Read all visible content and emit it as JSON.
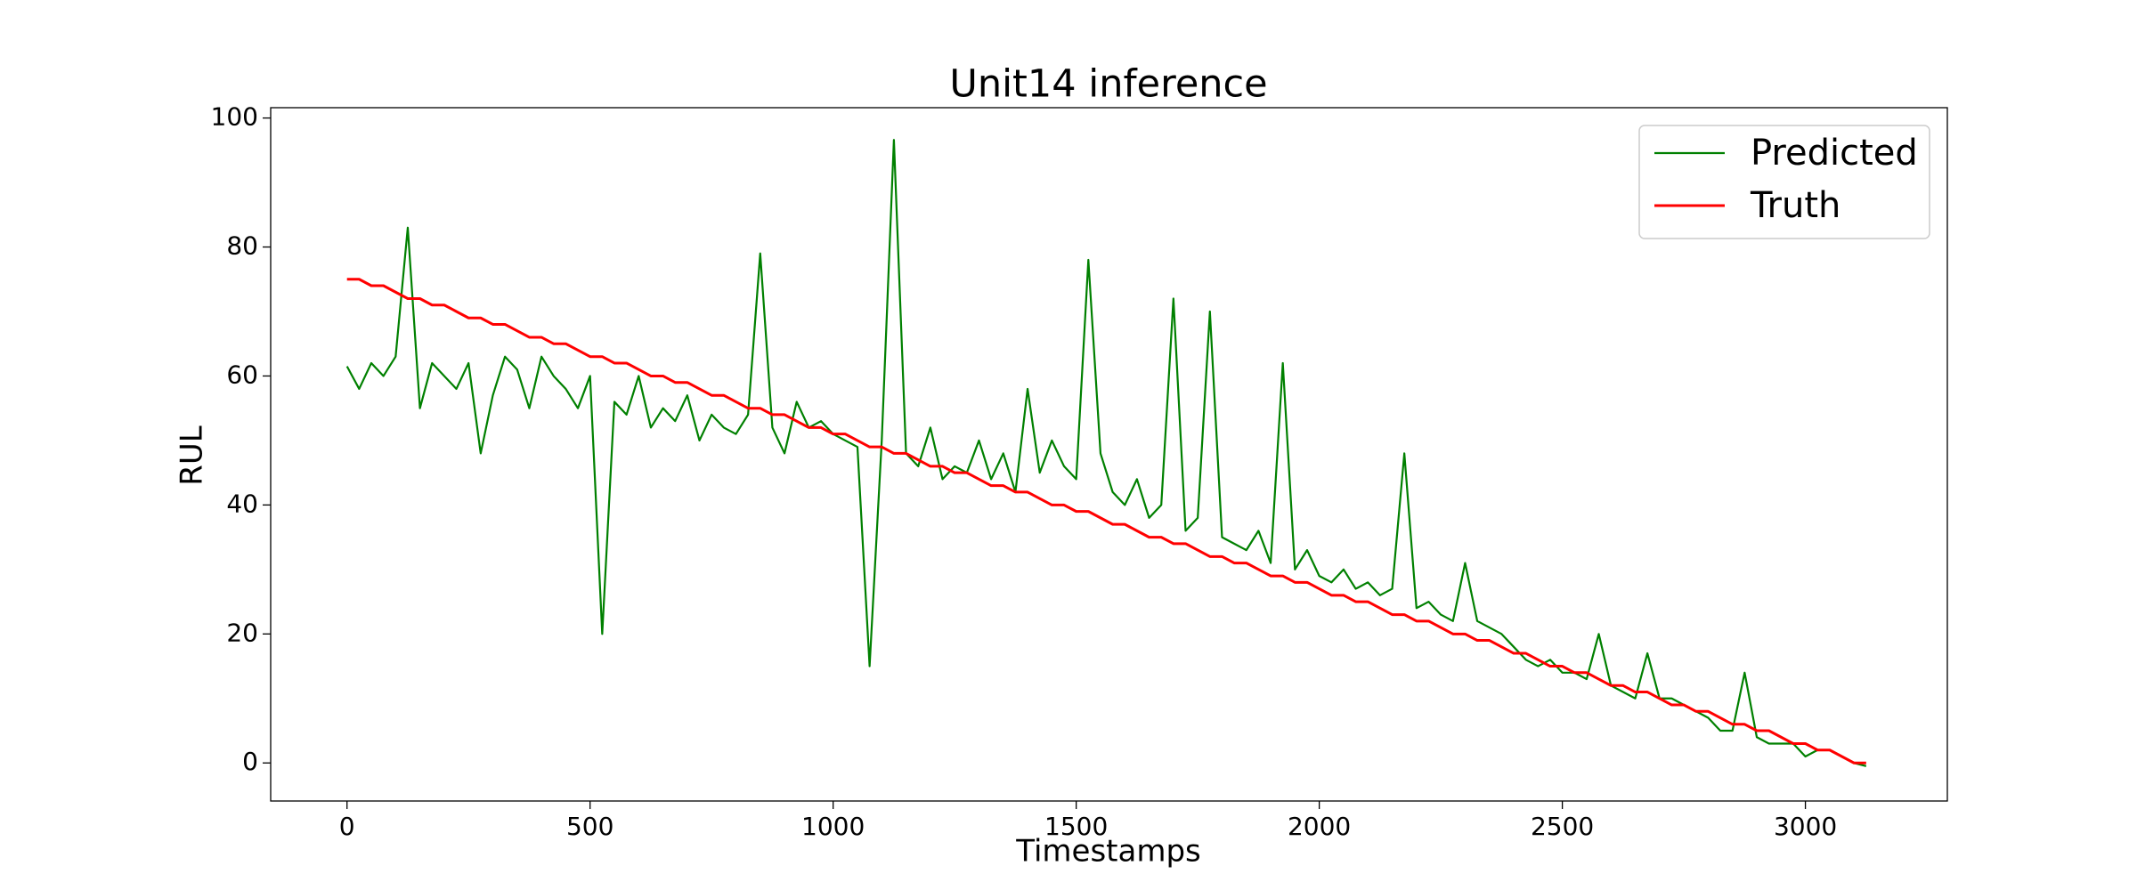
{
  "chart_data": {
    "type": "line",
    "title": "Unit14 inference",
    "x_label": "Timestamps",
    "y_label": "RUL",
    "x": [
      0,
      25,
      50,
      75,
      100,
      125,
      150,
      175,
      200,
      225,
      250,
      275,
      300,
      325,
      350,
      375,
      400,
      425,
      450,
      475,
      500,
      525,
      550,
      575,
      600,
      625,
      650,
      675,
      700,
      725,
      750,
      775,
      800,
      825,
      850,
      875,
      900,
      925,
      950,
      975,
      1000,
      1025,
      1050,
      1075,
      1100,
      1125,
      1150,
      1175,
      1200,
      1225,
      1250,
      1275,
      1300,
      1325,
      1350,
      1375,
      1400,
      1425,
      1450,
      1475,
      1500,
      1525,
      1550,
      1575,
      1600,
      1625,
      1650,
      1675,
      1700,
      1725,
      1750,
      1775,
      1800,
      1825,
      1850,
      1875,
      1900,
      1925,
      1950,
      1975,
      2000,
      2025,
      2050,
      2075,
      2100,
      2125,
      2150,
      2175,
      2200,
      2225,
      2250,
      2275,
      2300,
      2325,
      2350,
      2375,
      2400,
      2425,
      2450,
      2475,
      2500,
      2525,
      2550,
      2575,
      2600,
      2625,
      2650,
      2675,
      2700,
      2725,
      2750,
      2775,
      2800,
      2825,
      2850,
      2875,
      2900,
      2925,
      2950,
      2975,
      3000,
      3025,
      3050,
      3075,
      3100,
      3125
    ],
    "series": [
      {
        "name": "Predicted",
        "color": "#008000",
        "values": [
          61.5,
          58,
          62,
          60,
          63,
          83,
          55,
          62,
          60,
          58,
          62,
          48,
          57,
          63,
          61,
          55,
          63,
          60,
          58,
          55,
          60,
          20,
          56,
          54,
          60,
          52,
          55,
          53,
          57,
          50,
          54,
          52,
          51,
          54,
          79,
          52,
          48,
          56,
          52,
          53,
          51,
          50,
          49,
          15,
          50,
          96.6,
          48,
          46,
          52,
          44,
          46,
          45,
          50,
          44,
          48,
          42,
          58,
          45,
          50,
          46,
          44,
          78,
          48,
          42,
          40,
          44,
          38,
          40,
          72,
          36,
          38,
          70,
          35,
          34,
          33,
          36,
          31,
          62,
          30,
          33,
          29,
          28,
          30,
          27,
          28,
          26,
          27,
          48,
          24,
          25,
          23,
          22,
          31,
          22,
          21,
          20,
          18,
          16,
          15,
          16,
          14,
          14,
          13,
          20,
          12,
          11,
          10,
          17,
          10,
          10,
          9,
          8,
          7,
          5,
          5,
          14,
          4,
          3,
          3,
          3,
          1,
          2,
          2,
          1,
          0,
          -0.5
        ]
      },
      {
        "name": "Truth",
        "color": "#ff0000",
        "values": [
          75,
          75,
          74,
          74,
          73,
          72,
          72,
          71,
          71,
          70,
          69,
          69,
          68,
          68,
          67,
          66,
          66,
          65,
          65,
          64,
          63,
          63,
          62,
          62,
          61,
          60,
          60,
          59,
          59,
          58,
          57,
          57,
          56,
          55,
          55,
          54,
          54,
          53,
          52,
          52,
          51,
          51,
          50,
          49,
          49,
          48,
          48,
          47,
          46,
          46,
          45,
          45,
          44,
          43,
          43,
          42,
          42,
          41,
          40,
          40,
          39,
          39,
          38,
          37,
          37,
          36,
          35,
          35,
          34,
          34,
          33,
          32,
          32,
          31,
          31,
          30,
          29,
          29,
          28,
          28,
          27,
          26,
          26,
          25,
          25,
          24,
          23,
          23,
          22,
          22,
          21,
          20,
          20,
          19,
          19,
          18,
          17,
          17,
          16,
          15,
          15,
          14,
          14,
          13,
          12,
          12,
          11,
          11,
          10,
          9,
          9,
          8,
          8,
          7,
          6,
          6,
          5,
          5,
          4,
          3,
          3,
          2,
          2,
          1,
          0,
          0
        ]
      }
    ],
    "xlim": [
      -157,
      3292
    ],
    "ylim": [
      -5.9,
      101.6
    ],
    "xticks": [
      0,
      500,
      1000,
      1500,
      2000,
      2500,
      3000
    ],
    "yticks": [
      0,
      20,
      40,
      60,
      80,
      100
    ],
    "legend": "upper right"
  }
}
